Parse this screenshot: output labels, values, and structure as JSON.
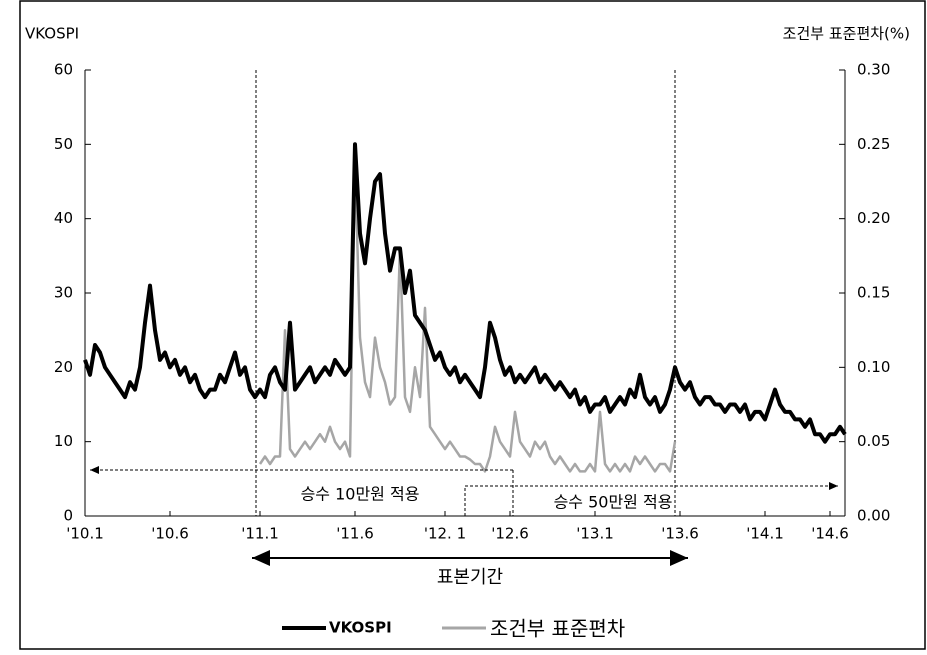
{
  "chart_data": {
    "type": "line",
    "y_label": "VKOSPI",
    "y2_label": "조건부 표준편차(%)",
    "annotations": [
      "승수 10만원 적용",
      "승수 50만원 적용",
      "표본기간"
    ],
    "categories": [
      "'10.1",
      null,
      null,
      null,
      null,
      null,
      null,
      null,
      null,
      null,
      null,
      null,
      null,
      null,
      null,
      null,
      null,
      "'10.6",
      null,
      null,
      null,
      null,
      null,
      null,
      null,
      null,
      null,
      null,
      null,
      null,
      null,
      null,
      null,
      null,
      null,
      "'11.1",
      null,
      null,
      null,
      null,
      null,
      null,
      null,
      null,
      null,
      null,
      null,
      null,
      null,
      null,
      null,
      null,
      null,
      null,
      "'11.6",
      null,
      null,
      null,
      null,
      null,
      null,
      null,
      null,
      null,
      null,
      null,
      null,
      null,
      null,
      null,
      null,
      null,
      "'12. 1",
      null,
      null,
      null,
      null,
      null,
      null,
      null,
      null,
      null,
      null,
      null,
      null,
      "'12.6",
      null,
      null,
      null,
      null,
      null,
      null,
      null,
      null,
      null,
      null,
      null,
      null,
      null,
      null,
      null,
      null,
      "'13.1",
      null,
      null,
      null,
      null,
      null,
      null,
      null,
      null,
      null,
      null,
      null,
      null,
      null,
      null,
      null,
      null,
      "'13.6",
      null,
      null,
      null,
      null,
      null,
      null,
      null,
      null,
      null,
      null,
      null,
      null,
      null,
      null,
      null,
      null,
      "'14.1",
      null,
      null,
      null,
      null,
      null,
      null,
      null,
      null,
      null,
      null,
      null,
      null,
      "'14.6",
      null,
      null,
      null
    ],
    "series": [
      {
        "name": "VKOSPI",
        "color": "#000000",
        "axis": "y",
        "values": [
          21,
          19,
          23,
          22,
          20,
          19,
          18,
          17,
          16,
          18,
          17,
          20,
          26,
          31,
          25,
          21,
          22,
          20,
          21,
          19,
          20,
          18,
          19,
          17,
          16,
          17,
          17,
          19,
          18,
          20,
          22,
          19,
          20,
          17,
          16,
          17,
          16,
          19,
          20,
          18,
          17,
          26,
          17,
          18,
          19,
          20,
          18,
          19,
          20,
          19,
          21,
          20,
          19,
          20,
          50,
          38,
          34,
          40,
          45,
          46,
          38,
          33,
          36,
          36,
          30,
          33,
          27,
          26,
          25,
          23,
          21,
          22,
          20,
          19,
          20,
          18,
          19,
          18,
          17,
          16,
          20,
          26,
          24,
          21,
          19,
          20,
          18,
          19,
          18,
          19,
          20,
          18,
          19,
          18,
          17,
          18,
          17,
          16,
          17,
          15,
          16,
          14,
          15,
          15,
          16,
          14,
          15,
          16,
          15,
          17,
          16,
          19,
          16,
          15,
          16,
          14,
          15,
          17,
          20,
          18,
          17,
          18,
          16,
          15,
          16,
          16,
          15,
          15,
          14,
          15,
          15,
          14,
          15,
          13,
          14,
          14,
          13,
          15,
          17,
          15,
          14,
          14,
          13,
          13,
          12,
          13,
          11,
          11,
          10,
          11,
          11,
          12,
          11
        ]
      },
      {
        "name": "조건부 표준편차",
        "color": "#a6a6a6",
        "axis": "y2",
        "values": [
          null,
          null,
          null,
          null,
          null,
          null,
          null,
          null,
          null,
          null,
          null,
          null,
          null,
          null,
          null,
          null,
          null,
          null,
          null,
          null,
          null,
          null,
          null,
          null,
          null,
          null,
          null,
          null,
          null,
          null,
          null,
          null,
          null,
          null,
          null,
          0.035,
          0.04,
          0.035,
          0.04,
          0.04,
          0.125,
          0.045,
          0.04,
          0.045,
          0.05,
          0.045,
          0.05,
          0.055,
          0.05,
          0.06,
          0.05,
          0.045,
          0.05,
          0.04,
          0.24,
          0.12,
          0.09,
          0.08,
          0.12,
          0.1,
          0.09,
          0.075,
          0.08,
          0.18,
          0.08,
          0.07,
          0.1,
          0.08,
          0.14,
          0.06,
          0.055,
          0.05,
          0.045,
          0.05,
          0.045,
          0.04,
          0.04,
          0.038,
          0.035,
          0.035,
          0.03,
          0.04,
          0.06,
          0.05,
          0.045,
          0.04,
          0.07,
          0.05,
          0.045,
          0.04,
          0.05,
          0.045,
          0.05,
          0.04,
          0.035,
          0.04,
          0.035,
          0.03,
          0.035,
          0.03,
          0.03,
          0.035,
          0.03,
          0.07,
          0.035,
          0.03,
          0.035,
          0.03,
          0.035,
          0.03,
          0.04,
          0.035,
          0.04,
          0.035,
          0.03,
          0.035,
          0.035,
          0.03,
          0.05,
          null,
          null,
          null,
          null,
          null,
          null,
          null,
          null,
          null,
          null,
          null,
          null,
          null,
          null,
          null,
          null,
          null,
          null,
          null,
          null,
          null,
          null,
          null,
          null,
          null,
          null,
          null,
          null,
          null,
          null,
          null,
          null,
          null,
          null
        ]
      }
    ],
    "ylim": [
      0,
      60
    ],
    "yticks": [
      0,
      10,
      20,
      30,
      40,
      50,
      60
    ],
    "y2lim": [
      0,
      0.3
    ],
    "y2ticks": [
      {
        "value": 0,
        "label": "0.00"
      },
      0.05,
      {
        "value": 0.1,
        "label": "0.10"
      },
      0.15,
      {
        "value": 0.2,
        "label": "0.20"
      },
      0.25,
      {
        "value": 0.3,
        "label": "0.30"
      }
    ],
    "legend": "bottom"
  }
}
